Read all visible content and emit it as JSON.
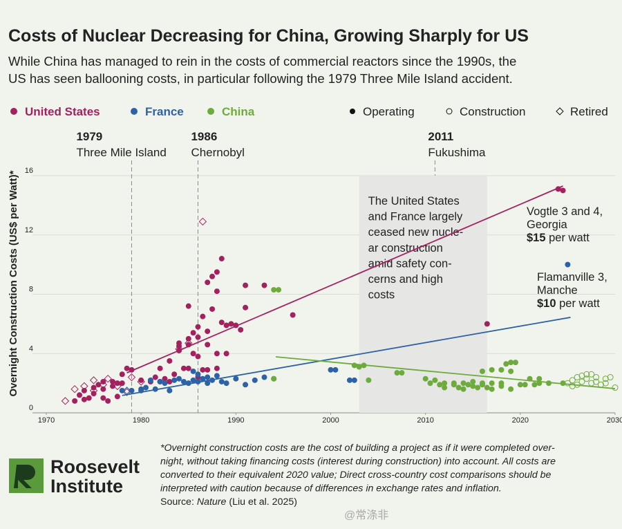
{
  "chart_data": {
    "type": "scatter",
    "title": "Costs of Nuclear Decreasing for China, Growing Sharply for US",
    "subtitle": [
      "While China has managed to rein in the costs of commercial reactors since the 1990s, the",
      "US has seen ballooning costs, in particular following the 1979 Three Mile Island accident."
    ],
    "y_label": "Overnight Construction Costs (US$ per Watt)*",
    "xlim": [
      1970,
      2030
    ],
    "xticks": [
      1970,
      1980,
      1990,
      2000,
      2010,
      2020,
      2030
    ],
    "ylim": [
      0,
      16
    ],
    "yticks": [
      0,
      4,
      8,
      12,
      16
    ],
    "grid": true,
    "markers": [
      {
        "key": "operating",
        "label": "Operating",
        "shape": "filled-circle"
      },
      {
        "key": "construction",
        "label": "Construction",
        "shape": "open-circle"
      },
      {
        "key": "retired",
        "label": "Retired",
        "shape": "open-diamond"
      }
    ],
    "series": [
      {
        "name": "United States",
        "color": "#a3215f",
        "groups": {
          "operating": {
            "x": [
              1973,
              1973.5,
              1974,
              1974,
              1975,
              1975.5,
              1976,
              1976,
              1976.5,
              1977,
              1977,
              1977.5,
              1976,
              1975,
              1978,
              1978.5,
              1979,
              1977.5,
              1978,
              1974.5,
              1980,
              1981,
              1981.5,
              1982,
              1982.5,
              1983,
              1983,
              1984,
              1984,
              1984.5,
              1985,
              1985,
              1985,
              1985.5,
              1985.5,
              1986,
              1986,
              1986,
              1986.5,
              1986.5,
              1987,
              1987,
              1987,
              1987.5,
              1987.5,
              1988,
              1988,
              1988,
              1988.5,
              1988.5,
              1988,
              1989,
              1989,
              1989.5,
              1990,
              1991,
              1991,
              1993,
              1996,
              1984,
              1985,
              1982,
              1987,
              1986,
              1983.5,
              1990.5,
              2016.5,
              2024,
              2024.5
            ],
            "values": [
              0.8,
              1.2,
              0.9,
              1.5,
              1.3,
              1.9,
              1.0,
              1.6,
              0.8,
              1.8,
              2.1,
              2.0,
              2.1,
              1.7,
              2.6,
              3.0,
              2.9,
              1.1,
              2.0,
              1.0,
              2.2,
              2.1,
              2.4,
              3.0,
              2.3,
              3.5,
              2.1,
              4.5,
              4.2,
              3.0,
              7.2,
              5.0,
              3.0,
              4.0,
              5.4,
              5.8,
              5.1,
              3.8,
              6.5,
              2.9,
              8.8,
              5.5,
              4.6,
              9.2,
              7.0,
              9.5,
              8.2,
              4.0,
              10.4,
              6.1,
              3.0,
              4.0,
              5.9,
              6.0,
              5.9,
              8.6,
              7.1,
              8.6,
              6.6,
              4.7,
              4.6,
              2.1,
              2.9,
              2.4,
              2.6,
              5.6,
              6.0,
              15.1,
              15.0
            ]
          },
          "retired": {
            "x": [
              1972,
              1973,
              1974,
              1975,
              1976,
              1976.5,
              1977.5,
              1979,
              1984,
              1985,
              1986.5,
              1978.5,
              1980,
              1975
            ],
            "values": [
              0.8,
              1.6,
              1.8,
              1.5,
              1.9,
              2.3,
              1.8,
              2.4,
              4.3,
              4.7,
              12.9,
              1.4,
              2.1,
              2.2
            ]
          }
        },
        "trend": {
          "x": [
            1978.5,
            2024.5
          ],
          "values": [
            2.7,
            15.3
          ]
        }
      },
      {
        "name": "France",
        "color": "#2d62a6",
        "groups": {
          "operating": {
            "x": [
              1978,
              1979,
              1980,
              1980.5,
              1981,
              1981.5,
              1982,
              1982.5,
              1983,
              1983.5,
              1984,
              1984.5,
              1985,
              1985.5,
              1986,
              1986.5,
              1987,
              1987.5,
              1988,
              1988.5,
              1989,
              1990,
              1991,
              1992,
              1993,
              1994,
              1985.5,
              2000.5,
              2000,
              2002,
              2002.5,
              2025,
              1980,
              1986,
              1987
            ],
            "values": [
              1.5,
              1.5,
              1.6,
              1.7,
              2.2,
              1.6,
              2.1,
              2.0,
              1.5,
              2.2,
              2.3,
              2.1,
              2.0,
              2.2,
              2.1,
              2.3,
              2.0,
              2.2,
              2.5,
              2.1,
              2.0,
              2.3,
              1.9,
              2.2,
              2.4,
              2.3,
              2.8,
              2.9,
              2.9,
              2.2,
              2.2,
              10.0,
              1.5,
              2.6,
              2.4
            ]
          },
          "retired": {
            "x": [
              1978.5
            ],
            "values": [
              1.5
            ]
          }
        },
        "trend": {
          "x": [
            1978,
            2025.3
          ],
          "values": [
            1.17,
            6.44
          ]
        }
      },
      {
        "name": "China",
        "color": "#6dab3c",
        "groups": {
          "operating": {
            "x": [
              1994,
              1994.5,
              1994,
              2002.5,
              2003,
              2003.5,
              2004,
              2007,
              2007.5,
              2010,
              2011,
              2011.5,
              2012,
              2013,
              2013.5,
              2014,
              2014.5,
              2015,
              2015.5,
              2016,
              2016.5,
              2016,
              2015,
              2014,
              2017,
              2017,
              2016,
              2017,
              2018,
              2018,
              2018.5,
              2019,
              2019,
              2019.5,
              2019,
              2020,
              2020.5,
              2021,
              2021.5,
              2022,
              2022,
              2023,
              2024.5,
              2018,
              2013,
              2012,
              2010.5
            ],
            "values": [
              8.3,
              8.3,
              2.3,
              3.2,
              3.1,
              3.2,
              2.2,
              2.7,
              2.7,
              2.3,
              2.2,
              1.9,
              1.7,
              2.0,
              1.7,
              1.6,
              1.9,
              1.8,
              1.7,
              1.9,
              1.7,
              2.0,
              2.1,
              2.0,
              2.0,
              1.6,
              2.8,
              2.9,
              2.0,
              2.9,
              3.3,
              2.8,
              3.4,
              3.4,
              1.6,
              1.9,
              1.9,
              2.3,
              1.9,
              2.0,
              2.3,
              2.0,
              2.0,
              1.8,
              1.9,
              2.0,
              2.0
            ]
          },
          "construction": {
            "x": [
              2025,
              2025.5,
              2026,
              2026,
              2026.5,
              2027,
              2027,
              2027.5,
              2027.5,
              2028,
              2028,
              2028.5,
              2029,
              2029,
              2029.5,
              2030,
              2026.5,
              2025.5
            ],
            "values": [
              2.0,
              2.2,
              1.9,
              2.4,
              2.1,
              2.6,
              2.3,
              2.0,
              2.6,
              2.4,
              2.1,
              1.9,
              2.3,
              2.0,
              2.4,
              1.7,
              2.5,
              1.8
            ]
          }
        },
        "trend": {
          "x": [
            1994.2,
            2030
          ],
          "values": [
            3.78,
            1.63
          ]
        }
      }
    ],
    "events": [
      {
        "year": 1979,
        "label": "Three Mile Island"
      },
      {
        "year": 1986,
        "label": "Chernobyl"
      },
      {
        "year": 2011,
        "label": "Fukushima"
      }
    ],
    "shaded_region": {
      "x": [
        2003,
        2016.5
      ],
      "lines": [
        "The United States",
        "and France largely",
        "ceased new nucle-",
        "ar construction",
        "amid safety con-",
        "cerns and high",
        "costs"
      ]
    },
    "callouts": [
      {
        "lines": [
          "Vogtle 3 and 4,",
          "Georgia"
        ],
        "value_label": "$15",
        "unit": " per watt"
      },
      {
        "lines": [
          "Flamanville 3,",
          "Manche"
        ],
        "value_label": "$10",
        "unit": " per watt"
      }
    ],
    "footnote": [
      "*Overnight construction costs are the cost of building a project as if it were completed over-",
      "night, without taking financing costs (interest during construction) into account. All costs are",
      "converted to their equivalent 2020 value; Direct cross-country cost comparisons should be",
      "interpreted with caution because of differences in exchange rates and inflation."
    ],
    "source": {
      "prefix": "Source: ",
      "journal": "Nature",
      "suffix": " (Liu et al. 2025)"
    },
    "logo": [
      "Roosevelt",
      "Institute"
    ],
    "watermark": "@常涤非"
  }
}
